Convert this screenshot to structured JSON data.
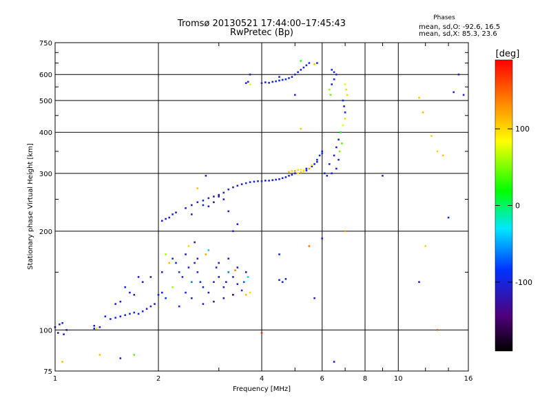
{
  "title_line1": "Tromsø 20130521 17:44:00–17:45:43",
  "title_line2": "RwPretec (Bp)",
  "phases": {
    "title": "Phases",
    "line_o": "mean, sd,O: -92.6, 16.5",
    "line_x": "mean, sd,X:  85.3, 23.6"
  },
  "colorbar": {
    "unit": "[deg]",
    "ticks": [
      100,
      0,
      -100
    ],
    "range": [
      -190,
      190
    ],
    "colormap": "rainbow"
  },
  "colors": {
    "frame": "#000000",
    "background": "#ffffff"
  },
  "chart_data": {
    "type": "scatter",
    "xlabel": "Frequency [MHz]",
    "ylabel": "Stationary phase Virtual Height [km]",
    "xscale": "log",
    "yscale": "log",
    "xlim": [
      1,
      16
    ],
    "ylim": [
      75,
      750
    ],
    "xticks": [
      1,
      2,
      4,
      6,
      8,
      10,
      16
    ],
    "xtick_labels": [
      "1",
      "2",
      "4",
      "6",
      "8",
      "10",
      "16"
    ],
    "yticks": [
      75,
      100,
      200,
      300,
      400,
      500,
      600,
      750
    ],
    "ytick_labels": [
      "75",
      "100",
      "200",
      "300",
      "400",
      "500",
      "600",
      "750"
    ],
    "grid": true,
    "points": [
      [
        1.0,
        102,
        -100
      ],
      [
        1.03,
        104,
        -100
      ],
      [
        1.05,
        105,
        -90
      ],
      [
        1.08,
        100,
        -110
      ],
      [
        1.02,
        98,
        -120
      ],
      [
        1.06,
        97,
        -100
      ],
      [
        1.3,
        103,
        -100
      ],
      [
        1.32,
        101,
        90
      ],
      [
        1.35,
        102,
        -110
      ],
      [
        1.4,
        110,
        -100
      ],
      [
        1.45,
        108,
        -100
      ],
      [
        1.5,
        109,
        -90
      ],
      [
        1.55,
        110,
        -100
      ],
      [
        1.6,
        111,
        -100
      ],
      [
        1.65,
        112,
        -90
      ],
      [
        1.7,
        113,
        -100
      ],
      [
        1.75,
        112,
        -100
      ],
      [
        1.8,
        114,
        -90
      ],
      [
        1.85,
        116,
        -100
      ],
      [
        1.9,
        118,
        -100
      ],
      [
        1.95,
        120,
        -110
      ],
      [
        2.0,
        128,
        -100
      ],
      [
        2.05,
        130,
        -100
      ],
      [
        2.1,
        125,
        -90
      ],
      [
        1.6,
        135,
        -100
      ],
      [
        1.7,
        128,
        -100
      ],
      [
        1.65,
        130,
        -100
      ],
      [
        1.55,
        122,
        -110
      ],
      [
        1.5,
        120,
        -100
      ],
      [
        1.75,
        145,
        -100
      ],
      [
        1.8,
        140,
        -110
      ],
      [
        1.9,
        145,
        -120
      ],
      [
        2.05,
        150,
        -100
      ],
      [
        2.1,
        170,
        60
      ],
      [
        2.2,
        165,
        -100
      ],
      [
        2.25,
        160,
        -90
      ],
      [
        2.3,
        150,
        -80
      ],
      [
        2.35,
        145,
        -100
      ],
      [
        2.4,
        170,
        -110
      ],
      [
        2.45,
        155,
        -100
      ],
      [
        2.5,
        140,
        -60
      ],
      [
        2.55,
        160,
        -110
      ],
      [
        2.6,
        150,
        -100
      ],
      [
        2.65,
        140,
        -90
      ],
      [
        2.7,
        135,
        -100
      ],
      [
        2.8,
        130,
        -110
      ],
      [
        2.9,
        140,
        -100
      ],
      [
        3.0,
        145,
        -100
      ],
      [
        3.1,
        135,
        -120
      ],
      [
        3.2,
        150,
        -60
      ],
      [
        3.3,
        145,
        -100
      ],
      [
        3.4,
        138,
        -100
      ],
      [
        3.5,
        132,
        -100
      ],
      [
        3.6,
        128,
        110
      ],
      [
        3.7,
        130,
        100
      ],
      [
        3.65,
        145,
        -10
      ],
      [
        3.3,
        128,
        -150
      ],
      [
        3.1,
        125,
        -130
      ],
      [
        2.9,
        122,
        -110
      ],
      [
        2.7,
        120,
        -100
      ],
      [
        2.5,
        125,
        -100
      ],
      [
        2.4,
        130,
        -90
      ],
      [
        2.3,
        118,
        -100
      ],
      [
        2.2,
        135,
        60
      ],
      [
        2.15,
        160,
        110
      ],
      [
        2.6,
        165,
        -100
      ],
      [
        2.8,
        175,
        -40
      ],
      [
        3.0,
        160,
        -110
      ],
      [
        3.2,
        165,
        -100
      ],
      [
        3.4,
        155,
        -100
      ],
      [
        3.6,
        150,
        -120
      ],
      [
        2.45,
        180,
        100
      ],
      [
        2.55,
        185,
        -110
      ],
      [
        2.75,
        170,
        120
      ],
      [
        2.95,
        155,
        -90
      ],
      [
        3.15,
        140,
        -100
      ],
      [
        3.35,
        152,
        130
      ],
      [
        3.55,
        140,
        -70
      ],
      [
        4.5,
        142,
        -100
      ],
      [
        4.6,
        140,
        -100
      ],
      [
        4.7,
        143,
        -100
      ],
      [
        6.5,
        80,
        -110
      ],
      [
        5.7,
        125,
        -110
      ],
      [
        4.0,
        98,
        170
      ],
      [
        1.35,
        84,
        110
      ],
      [
        1.55,
        82,
        -100
      ],
      [
        1.7,
        84,
        40
      ],
      [
        1.05,
        80,
        110
      ],
      [
        1.3,
        101,
        -100
      ],
      [
        2.05,
        215,
        -100
      ],
      [
        2.1,
        218,
        -110
      ],
      [
        2.15,
        220,
        -100
      ],
      [
        2.2,
        225,
        -90
      ],
      [
        2.25,
        228,
        -100
      ],
      [
        2.4,
        235,
        -100
      ],
      [
        2.5,
        240,
        -110
      ],
      [
        2.6,
        245,
        -100
      ],
      [
        2.7,
        248,
        -90
      ],
      [
        2.8,
        252,
        -100
      ],
      [
        2.9,
        255,
        -100
      ],
      [
        3.0,
        258,
        -110
      ],
      [
        3.1,
        262,
        -100
      ],
      [
        3.2,
        268,
        -90
      ],
      [
        3.3,
        272,
        -100
      ],
      [
        3.4,
        275,
        -100
      ],
      [
        3.5,
        278,
        -110
      ],
      [
        3.6,
        280,
        -100
      ],
      [
        3.7,
        282,
        -100
      ],
      [
        3.8,
        283,
        -100
      ],
      [
        3.9,
        284,
        -100
      ],
      [
        4.0,
        284,
        -100
      ],
      [
        4.1,
        285,
        -100
      ],
      [
        4.2,
        285,
        -100
      ],
      [
        4.3,
        286,
        -100
      ],
      [
        4.4,
        287,
        -100
      ],
      [
        4.5,
        288,
        -100
      ],
      [
        4.6,
        290,
        -100
      ],
      [
        4.7,
        292,
        -100
      ],
      [
        4.8,
        295,
        -100
      ],
      [
        4.9,
        297,
        -100
      ],
      [
        5.0,
        300,
        -100
      ],
      [
        5.1,
        300,
        100
      ],
      [
        5.2,
        302,
        110
      ],
      [
        5.3,
        304,
        100
      ],
      [
        5.4,
        306,
        -100
      ],
      [
        5.5,
        310,
        120
      ],
      [
        5.6,
        315,
        -100
      ],
      [
        5.7,
        320,
        -100
      ],
      [
        5.8,
        330,
        -100
      ],
      [
        5.9,
        340,
        -100
      ],
      [
        6.0,
        350,
        -110
      ],
      [
        4.8,
        303,
        110
      ],
      [
        4.9,
        305,
        100
      ],
      [
        5.0,
        305,
        120
      ],
      [
        5.1,
        307,
        100
      ],
      [
        5.2,
        308,
        90
      ],
      [
        5.3,
        306,
        100
      ],
      [
        5.4,
        310,
        -100
      ],
      [
        5.6,
        318,
        100
      ],
      [
        5.8,
        325,
        -100
      ],
      [
        6.0,
        345,
        -80
      ],
      [
        6.1,
        300,
        -100
      ],
      [
        6.3,
        320,
        -100
      ],
      [
        6.5,
        340,
        -110
      ],
      [
        6.6,
        360,
        -100
      ],
      [
        6.7,
        380,
        -100
      ],
      [
        6.8,
        400,
        20
      ],
      [
        6.9,
        420,
        90
      ],
      [
        7.0,
        440,
        100
      ],
      [
        6.85,
        370,
        40
      ],
      [
        6.75,
        350,
        50
      ],
      [
        6.7,
        330,
        -100
      ],
      [
        6.6,
        310,
        -100
      ],
      [
        6.4,
        300,
        -100
      ],
      [
        6.2,
        295,
        -100
      ],
      [
        2.5,
        225,
        -100
      ],
      [
        2.7,
        240,
        -100
      ],
      [
        2.9,
        245,
        -120
      ],
      [
        3.1,
        250,
        -110
      ],
      [
        2.8,
        238,
        -100
      ],
      [
        3.0,
        255,
        -130
      ],
      [
        2.75,
        295,
        -100
      ],
      [
        2.6,
        270,
        110
      ],
      [
        3.2,
        230,
        -100
      ],
      [
        3.4,
        210,
        -100
      ],
      [
        5.0,
        300,
        -100
      ],
      [
        3.6,
        565,
        -100
      ],
      [
        3.65,
        570,
        -100
      ],
      [
        3.7,
        560,
        90
      ],
      [
        4.0,
        565,
        -100
      ],
      [
        4.1,
        568,
        -100
      ],
      [
        4.2,
        566,
        -100
      ],
      [
        4.3,
        570,
        -100
      ],
      [
        4.4,
        572,
        -100
      ],
      [
        4.5,
        575,
        -100
      ],
      [
        4.6,
        578,
        -100
      ],
      [
        4.7,
        580,
        -100
      ],
      [
        4.8,
        585,
        -100
      ],
      [
        4.9,
        590,
        -100
      ],
      [
        5.0,
        600,
        -100
      ],
      [
        5.1,
        610,
        -100
      ],
      [
        5.2,
        620,
        -100
      ],
      [
        5.3,
        630,
        -100
      ],
      [
        5.4,
        640,
        -100
      ],
      [
        5.5,
        650,
        -100
      ],
      [
        5.7,
        645,
        110
      ],
      [
        5.8,
        650,
        -100
      ],
      [
        6.4,
        620,
        -100
      ],
      [
        6.5,
        610,
        -100
      ],
      [
        6.6,
        600,
        -100
      ],
      [
        6.5,
        580,
        -100
      ],
      [
        6.4,
        560,
        -100
      ],
      [
        6.3,
        540,
        60
      ],
      [
        6.35,
        520,
        40
      ],
      [
        5.0,
        520,
        -100
      ],
      [
        5.2,
        660,
        30
      ],
      [
        7.0,
        560,
        90
      ],
      [
        7.05,
        540,
        100
      ],
      [
        7.1,
        520,
        100
      ],
      [
        6.9,
        500,
        -100
      ],
      [
        6.95,
        480,
        -100
      ],
      [
        7.0,
        460,
        -100
      ],
      [
        3.7,
        600,
        -100
      ],
      [
        4.5,
        590,
        -100
      ],
      [
        5.2,
        410,
        110
      ],
      [
        11.5,
        510,
        110
      ],
      [
        11.8,
        460,
        110
      ],
      [
        12.5,
        390,
        100
      ],
      [
        13.0,
        350,
        100
      ],
      [
        13.5,
        340,
        110
      ],
      [
        14.0,
        220,
        -100
      ],
      [
        15.0,
        600,
        -110
      ],
      [
        15.5,
        520,
        -110
      ],
      [
        14.5,
        530,
        -100
      ],
      [
        12.0,
        180,
        100
      ],
      [
        11.5,
        140,
        -110
      ],
      [
        13.0,
        100,
        150
      ],
      [
        9.0,
        295,
        -100
      ],
      [
        7.0,
        200,
        130
      ],
      [
        5.5,
        180,
        140
      ],
      [
        4.5,
        170,
        -100
      ],
      [
        3.3,
        200,
        -100
      ],
      [
        6.0,
        190,
        -100
      ]
    ]
  }
}
